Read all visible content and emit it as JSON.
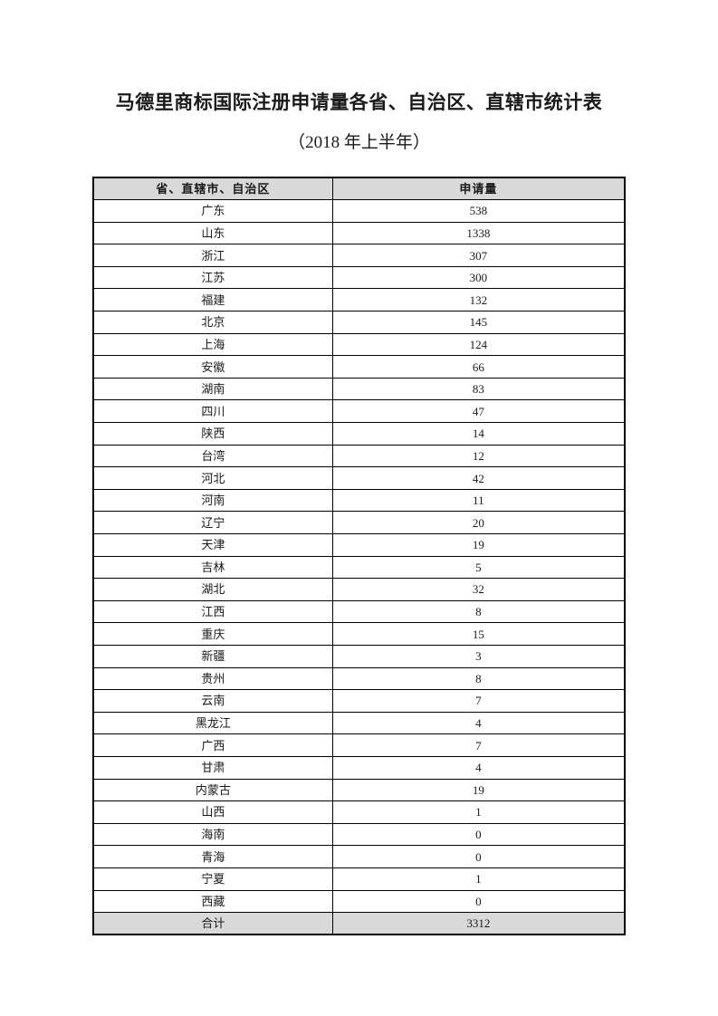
{
  "document": {
    "title_line1": "马德里商标国际注册申请量各省、自治区、直辖市统计表",
    "title_line2": "（2018 年上半年）"
  },
  "table": {
    "headers": [
      "省、直辖市、自治区",
      "申请量"
    ],
    "rows": [
      [
        "广东",
        "538"
      ],
      [
        "山东",
        "1338"
      ],
      [
        "浙江",
        "307"
      ],
      [
        "江苏",
        "300"
      ],
      [
        "福建",
        "132"
      ],
      [
        "北京",
        "145"
      ],
      [
        "上海",
        "124"
      ],
      [
        "安徽",
        "66"
      ],
      [
        "湖南",
        "83"
      ],
      [
        "四川",
        "47"
      ],
      [
        "陕西",
        "14"
      ],
      [
        "台湾",
        "12"
      ],
      [
        "河北",
        "42"
      ],
      [
        "河南",
        "11"
      ],
      [
        "辽宁",
        "20"
      ],
      [
        "天津",
        "19"
      ],
      [
        "吉林",
        "5"
      ],
      [
        "湖北",
        "32"
      ],
      [
        "江西",
        "8"
      ],
      [
        "重庆",
        "15"
      ],
      [
        "新疆",
        "3"
      ],
      [
        "贵州",
        "8"
      ],
      [
        "云南",
        "7"
      ],
      [
        "黑龙江",
        "4"
      ],
      [
        "广西",
        "7"
      ],
      [
        "甘肃",
        "4"
      ],
      [
        "内蒙古",
        "19"
      ],
      [
        "山西",
        "1"
      ],
      [
        "海南",
        "0"
      ],
      [
        "青海",
        "0"
      ],
      [
        "宁夏",
        "1"
      ],
      [
        "西藏",
        "0"
      ]
    ],
    "total_label": "合计",
    "total_value": "3312"
  },
  "colors": {
    "header_bg": "#d9d9d9",
    "total_bg": "#d9d9d9",
    "border": "#000000",
    "page_bg": "#ffffff",
    "text": "#1a1a1a"
  }
}
